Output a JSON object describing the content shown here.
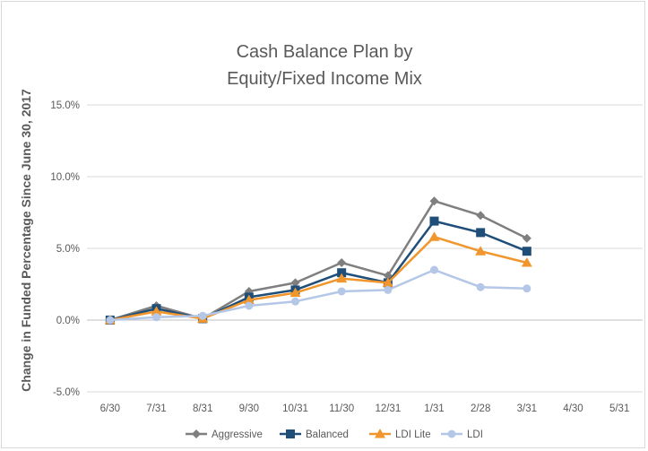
{
  "chart_data": {
    "type": "line",
    "title": [
      "Cash Balance Plan by",
      "Equity/Fixed Income Mix"
    ],
    "xlabel": "",
    "ylabel": "Change in Funded Percentage Since June 30, 2017",
    "categories": [
      "6/30",
      "7/31",
      "8/31",
      "9/30",
      "10/31",
      "11/30",
      "12/31",
      "1/31",
      "2/28",
      "3/31",
      "4/30",
      "5/31"
    ],
    "ylim": [
      -5.0,
      15.0
    ],
    "yticks": [
      -5.0,
      0.0,
      5.0,
      10.0,
      15.0
    ],
    "ytick_labels": [
      "-5.0%",
      "0.0%",
      "5.0%",
      "10.0%",
      "15.0%"
    ],
    "y_unit": "%",
    "grid": "horizontal",
    "legend": "bottom",
    "series": [
      {
        "name": "Aggressive",
        "color": "#7f7f7f",
        "marker": "diamond",
        "values": [
          0.0,
          1.0,
          0.1,
          2.0,
          2.6,
          4.0,
          3.1,
          8.3,
          7.3,
          5.7,
          null,
          null
        ]
      },
      {
        "name": "Balanced",
        "color": "#1f4e79",
        "marker": "square",
        "values": [
          0.0,
          0.8,
          0.1,
          1.6,
          2.1,
          3.3,
          2.6,
          6.9,
          6.1,
          4.8,
          null,
          null
        ]
      },
      {
        "name": "LDI Lite",
        "color": "#f0962d",
        "marker": "triangle",
        "values": [
          0.0,
          0.6,
          0.1,
          1.4,
          1.9,
          2.9,
          2.6,
          5.8,
          4.8,
          4.0,
          null,
          null
        ]
      },
      {
        "name": "LDI",
        "color": "#b4c7e7",
        "marker": "circle",
        "values": [
          0.0,
          0.2,
          0.3,
          1.0,
          1.3,
          2.0,
          2.1,
          3.5,
          2.3,
          2.2,
          null,
          null
        ]
      }
    ]
  }
}
